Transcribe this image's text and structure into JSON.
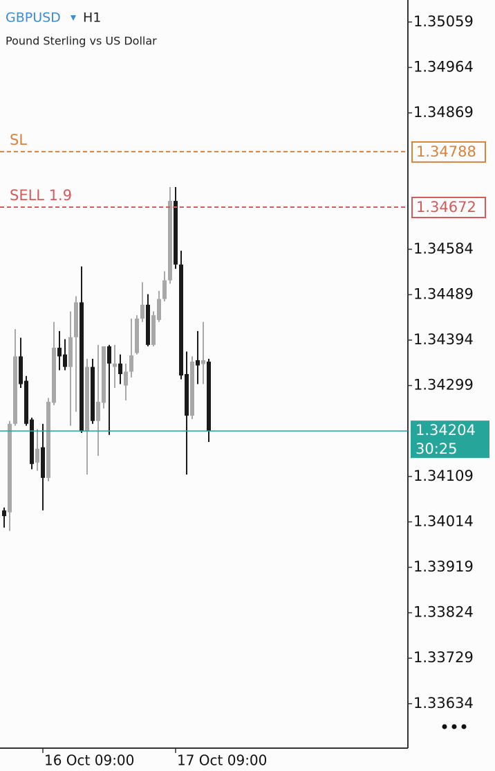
{
  "chart_data": {
    "type": "candlestick",
    "symbol": "GBPUSD",
    "timeframe": "H1",
    "description": "Pound Sterling vs US Dollar",
    "categories": [
      null,
      null,
      null,
      null,
      null,
      null,
      null,
      "16 Oct 09:00",
      null,
      null,
      null,
      null,
      null,
      null,
      null,
      null,
      null,
      null,
      null,
      null,
      null,
      null,
      null,
      null,
      null,
      null,
      null,
      null,
      null,
      null,
      null,
      "17 Oct 09:00",
      null,
      null,
      null,
      null,
      null,
      null
    ],
    "open": [
      1.34038,
      1.34034,
      1.34219,
      1.3436,
      1.34309,
      1.34228,
      1.34138,
      1.3417,
      1.34106,
      1.34263,
      1.34378,
      1.34364,
      1.34338,
      1.344,
      1.34473,
      1.34203,
      1.34338,
      1.34225,
      1.34263,
      1.34381,
      1.34338,
      1.34345,
      1.34299,
      1.34328,
      1.34367,
      1.34439,
      1.34468,
      1.34384,
      1.34436,
      1.3448,
      1.34519,
      1.34685,
      1.34552,
      1.34323,
      1.34236,
      1.34352,
      1.34344,
      1.34349
    ],
    "high": [
      1.34044,
      1.34225,
      1.34417,
      1.34399,
      1.34319,
      1.34232,
      1.34208,
      1.34219,
      1.34273,
      1.34432,
      1.34413,
      1.34396,
      1.34454,
      1.34486,
      1.34548,
      1.34355,
      1.34355,
      1.34384,
      1.34381,
      1.34384,
      1.34384,
      1.34364,
      1.34345,
      1.34439,
      1.34446,
      1.34515,
      1.3449,
      1.34454,
      1.34497,
      1.34538,
      1.34714,
      1.34714,
      1.34581,
      1.3437,
      1.3436,
      1.34413,
      1.34432,
      1.34355
    ],
    "low": [
      1.34002,
      1.33995,
      1.34215,
      1.34294,
      1.34215,
      1.34124,
      1.34121,
      1.34038,
      1.34099,
      1.34258,
      1.34331,
      1.34331,
      1.34215,
      1.34244,
      1.342,
      1.34113,
      1.34219,
      1.34152,
      1.34251,
      1.34196,
      1.34294,
      1.34302,
      1.34268,
      1.34316,
      1.34364,
      1.34432,
      1.34381,
      1.34381,
      1.34432,
      1.34475,
      1.34512,
      1.34543,
      1.34312,
      1.34113,
      1.34229,
      1.34302,
      1.34302,
      1.34181
    ],
    "close": [
      1.34026,
      1.34219,
      1.3436,
      1.34302,
      1.34219,
      1.34135,
      1.34167,
      1.34106,
      1.34265,
      1.34378,
      1.3436,
      1.34338,
      1.344,
      1.34473,
      1.34203,
      1.34338,
      1.34225,
      1.34265,
      1.34381,
      1.34345,
      1.34345,
      1.34323,
      1.34328,
      1.34362,
      1.34439,
      1.34468,
      1.34384,
      1.34446,
      1.3448,
      1.34519,
      1.34685,
      1.34552,
      1.3432,
      1.34236,
      1.34349,
      1.34341,
      1.34352,
      1.34204
    ],
    "up_color": "#a8a8a8",
    "down_color": "#1a1a1a",
    "ylim": [
      1.33541,
      1.35105
    ],
    "yticks": [
      1.35059,
      1.34964,
      1.34869,
      1.34584,
      1.34489,
      1.34394,
      1.34299,
      1.34109,
      1.34014,
      1.33919,
      1.33824,
      1.33729,
      1.33634
    ],
    "lines": [
      {
        "label": "SL",
        "value": 1.34788,
        "color": "#d9823a"
      },
      {
        "label": "SELL 1.9",
        "value": 1.34672,
        "color": "#d65a5a"
      }
    ],
    "current_price": 1.34204,
    "current_color": "#26a69a",
    "countdown": "30:25"
  }
}
